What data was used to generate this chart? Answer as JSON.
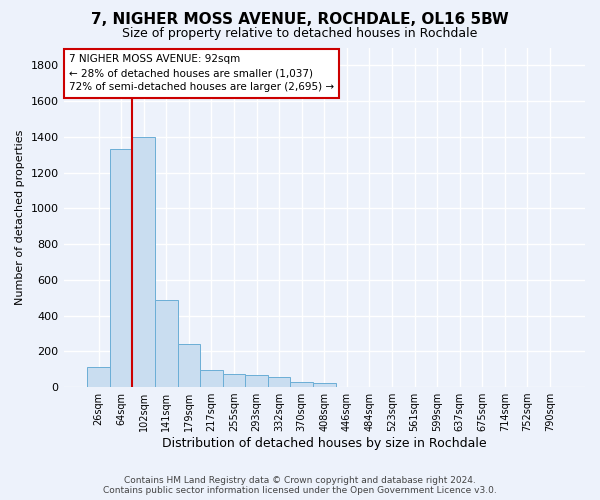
{
  "title": "7, NIGHER MOSS AVENUE, ROCHDALE, OL16 5BW",
  "subtitle": "Size of property relative to detached houses in Rochdale",
  "xlabel": "Distribution of detached houses by size in Rochdale",
  "ylabel": "Number of detached properties",
  "bar_color": "#c9ddf0",
  "bar_edge_color": "#6baed6",
  "categories": [
    "26sqm",
    "64sqm",
    "102sqm",
    "141sqm",
    "179sqm",
    "217sqm",
    "255sqm",
    "293sqm",
    "332sqm",
    "370sqm",
    "408sqm",
    "446sqm",
    "484sqm",
    "523sqm",
    "561sqm",
    "599sqm",
    "637sqm",
    "675sqm",
    "714sqm",
    "752sqm",
    "790sqm"
  ],
  "values": [
    110,
    1330,
    1400,
    490,
    240,
    95,
    75,
    70,
    55,
    30,
    25,
    0,
    0,
    0,
    0,
    0,
    0,
    0,
    0,
    0,
    0
  ],
  "ylim": [
    0,
    1900
  ],
  "yticks": [
    0,
    200,
    400,
    600,
    800,
    1000,
    1200,
    1400,
    1600,
    1800
  ],
  "vline_x": 1.5,
  "vline_color": "#cc0000",
  "annotation_text": "7 NIGHER MOSS AVENUE: 92sqm\n← 28% of detached houses are smaller (1,037)\n72% of semi-detached houses are larger (2,695) →",
  "annotation_box_facecolor": "#ffffff",
  "annotation_box_edgecolor": "#cc0000",
  "footer_line1": "Contains HM Land Registry data © Crown copyright and database right 2024.",
  "footer_line2": "Contains public sector information licensed under the Open Government Licence v3.0.",
  "background_color": "#edf2fb",
  "grid_color": "#ffffff",
  "title_fontsize": 11,
  "subtitle_fontsize": 9,
  "ylabel_fontsize": 8,
  "xlabel_fontsize": 9,
  "tick_fontsize": 7,
  "footer_fontsize": 6.5
}
